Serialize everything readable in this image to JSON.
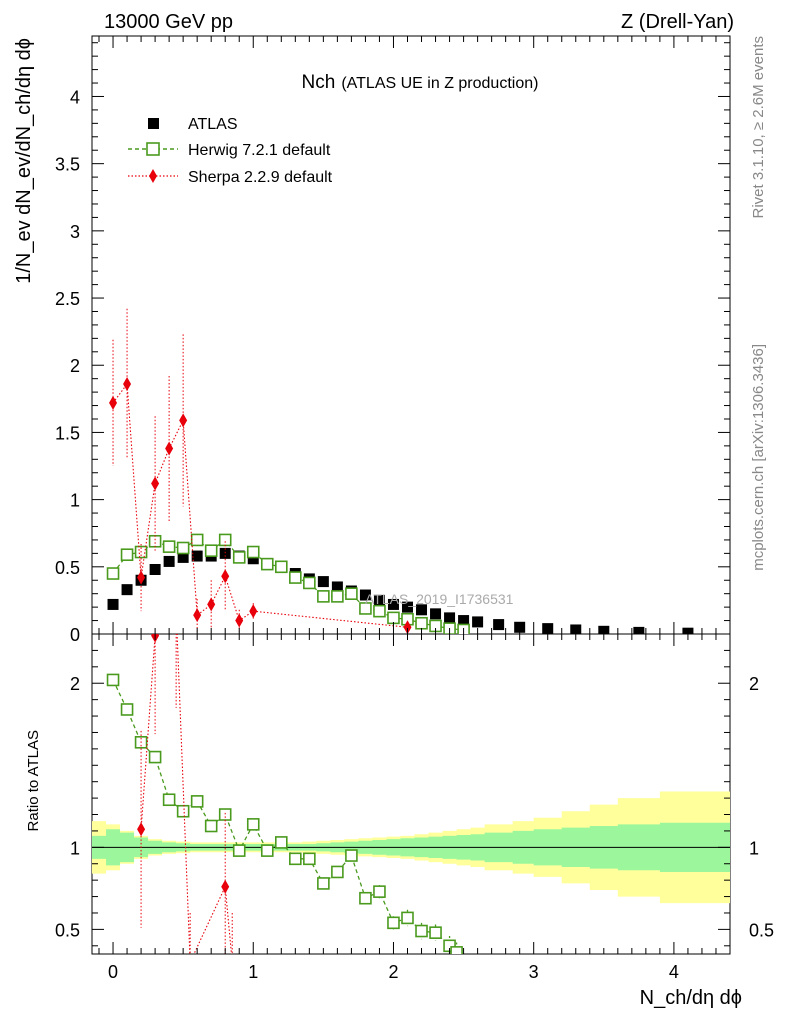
{
  "header": {
    "left": "13000 GeV pp",
    "right": "Z (Drell-Yan)"
  },
  "side_labels": {
    "rivet": "Rivet 3.1.10, ≥ 2.6M events",
    "source": "mcplots.cern.ch [arXiv:1306.3436]"
  },
  "watermark": "ATLAS_2019_I1736531",
  "chart_data": {
    "type": "line",
    "title_main": "Nch",
    "title_sub": "(ATLAS UE in Z production)",
    "xlabel": "N_ch/dη dϕ",
    "ylabel_main": "1/N_ev dN_ev/dN_ch/dη dϕ",
    "ylabel_ratio": "Ratio to ATLAS",
    "xlim": [
      -0.15,
      4.4
    ],
    "ylim_main": [
      0,
      4.45
    ],
    "ylim_ratio": [
      0.35,
      2.3
    ],
    "x_ticks": [
      "0",
      "1",
      "2",
      "3",
      "4"
    ],
    "y_ticks_main": [
      "0",
      "0.5",
      "1",
      "1.5",
      "2",
      "2.5",
      "3",
      "3.5",
      "4"
    ],
    "y_ticks_ratio": [
      "0.5",
      "1",
      "2"
    ],
    "legend_position": "top-left",
    "series": [
      {
        "name": "ATLAS",
        "color": "#000000",
        "marker": "filled-square",
        "x": [
          0,
          0.1,
          0.2,
          0.3,
          0.4,
          0.5,
          0.6,
          0.7,
          0.8,
          0.9,
          1.0,
          1.1,
          1.2,
          1.3,
          1.4,
          1.5,
          1.6,
          1.7,
          1.8,
          1.9,
          2.0,
          2.1,
          2.2,
          2.3,
          2.4,
          2.5,
          2.6,
          2.75,
          2.9,
          3.1,
          3.3,
          3.5,
          3.75,
          4.1
        ],
        "y": [
          0.22,
          0.33,
          0.4,
          0.48,
          0.54,
          0.57,
          0.58,
          0.58,
          0.6,
          0.58,
          0.56,
          0.52,
          0.5,
          0.45,
          0.41,
          0.39,
          0.35,
          0.32,
          0.29,
          0.25,
          0.22,
          0.2,
          0.18,
          0.15,
          0.12,
          0.1,
          0.09,
          0.07,
          0.05,
          0.04,
          0.03,
          0.02,
          0.012,
          0.006
        ]
      },
      {
        "name": "Herwig 7.2.1 default",
        "color": "#4a9a1e",
        "marker": "open-square",
        "line": "dashed",
        "x": [
          0,
          0.1,
          0.2,
          0.3,
          0.4,
          0.5,
          0.6,
          0.7,
          0.8,
          0.9,
          1.0,
          1.1,
          1.2,
          1.3,
          1.4,
          1.5,
          1.6,
          1.7,
          1.8,
          1.9,
          2.0,
          2.1,
          2.2,
          2.3,
          2.4,
          2.5
        ],
        "y": [
          0.45,
          0.59,
          0.61,
          0.69,
          0.65,
          0.64,
          0.7,
          0.62,
          0.7,
          0.57,
          0.61,
          0.52,
          0.5,
          0.42,
          0.38,
          0.28,
          0.28,
          0.3,
          0.19,
          0.17,
          0.12,
          0.11,
          0.08,
          0.06,
          0.04,
          0.03
        ]
      },
      {
        "name": "Sherpa 2.2.9 default",
        "color": "#e8000b",
        "marker": "filled-diamond",
        "line": "dotted",
        "x": [
          0,
          0.1,
          0.2,
          0.3,
          0.4,
          0.5,
          0.6,
          0.7,
          0.8,
          0.9,
          1.0,
          2.1
        ],
        "y": [
          1.72,
          1.86,
          0.42,
          1.12,
          1.38,
          1.59,
          0.14,
          0.22,
          0.43,
          0.1,
          0.17,
          0.05
        ],
        "y_err": [
          0.47,
          0.56,
          0.25,
          0.5,
          0.54,
          0.64,
          0.12,
          0.18,
          0.26,
          0.08,
          0.06,
          0.04
        ]
      }
    ],
    "ratio": {
      "band_x": [
        -0.15,
        -0.05,
        0.05,
        0.15,
        0.25,
        0.35,
        0.45,
        0.55,
        0.65,
        0.75,
        0.85,
        0.95,
        1.05,
        1.15,
        1.25,
        1.35,
        1.45,
        1.55,
        1.65,
        1.75,
        1.85,
        1.95,
        2.05,
        2.15,
        2.25,
        2.35,
        2.45,
        2.55,
        2.65,
        2.85,
        3.0,
        3.2,
        3.4,
        3.6,
        3.9,
        4.3,
        4.4
      ],
      "green_half": [
        0.07,
        0.11,
        0.09,
        0.06,
        0.04,
        0.03,
        0.025,
        0.02,
        0.02,
        0.02,
        0.02,
        0.02,
        0.02,
        0.02,
        0.02,
        0.02,
        0.025,
        0.03,
        0.035,
        0.04,
        0.045,
        0.05,
        0.055,
        0.06,
        0.065,
        0.07,
        0.075,
        0.08,
        0.09,
        0.1,
        0.11,
        0.12,
        0.13,
        0.14,
        0.15,
        0.15
      ],
      "yellow_half": [
        0.16,
        0.14,
        0.1,
        0.07,
        0.05,
        0.04,
        0.035,
        0.03,
        0.03,
        0.03,
        0.03,
        0.03,
        0.03,
        0.03,
        0.03,
        0.035,
        0.04,
        0.045,
        0.05,
        0.055,
        0.06,
        0.065,
        0.07,
        0.08,
        0.09,
        0.1,
        0.11,
        0.12,
        0.14,
        0.16,
        0.18,
        0.22,
        0.26,
        0.3,
        0.34,
        0.34
      ],
      "herwig_x": [
        0,
        0.1,
        0.2,
        0.3,
        0.4,
        0.5,
        0.6,
        0.7,
        0.8,
        0.9,
        1.0,
        1.1,
        1.2,
        1.3,
        1.4,
        1.5,
        1.6,
        1.7,
        1.8,
        1.9,
        2.0,
        2.1,
        2.2,
        2.3,
        2.4,
        2.45
      ],
      "herwig_y": [
        2.02,
        1.84,
        1.64,
        1.55,
        1.29,
        1.22,
        1.28,
        1.13,
        1.2,
        0.98,
        1.14,
        0.98,
        1.03,
        0.93,
        0.93,
        0.78,
        0.85,
        0.95,
        0.69,
        0.73,
        0.54,
        0.57,
        0.49,
        0.48,
        0.4,
        0.36
      ],
      "herwig_err": [
        0.02,
        0.02,
        0.02,
        0.02,
        0.02,
        0.02,
        0.02,
        0.02,
        0.02,
        0.02,
        0.02,
        0.02,
        0.02,
        0.02,
        0.02,
        0.03,
        0.03,
        0.03,
        0.03,
        0.04,
        0.04,
        0.05,
        0.05,
        0.05,
        0.06,
        0.06
      ],
      "sherpa_x": [
        0.2,
        0.3,
        0.45,
        0.55,
        0.8,
        0.85
      ],
      "sherpa_y": [
        1.11,
        2.29,
        2.45,
        0.3,
        0.76,
        0.3
      ],
      "sherpa_err": [
        0.6,
        0.6,
        0.6,
        0.3,
        0.45,
        0.3
      ]
    }
  }
}
